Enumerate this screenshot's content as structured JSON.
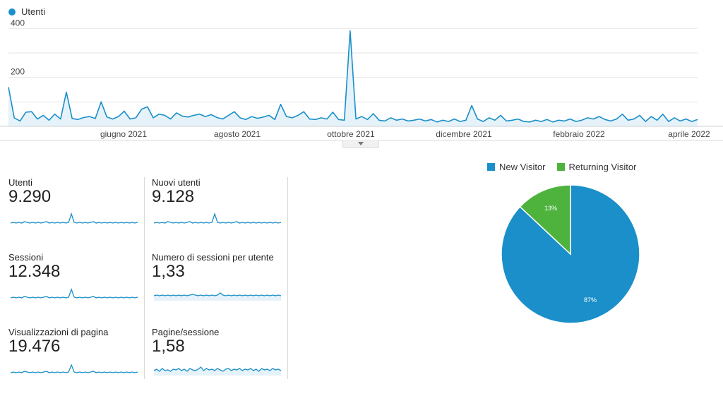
{
  "colors": {
    "accent": "#1a8fc9",
    "new_visitor": "#1a8fc9",
    "returning_visitor": "#4eb33d",
    "grid": "#e6e6e6",
    "area_fill": "#e6f2f9"
  },
  "legend": {
    "series_name": "Utenti"
  },
  "chart_data": [
    {
      "type": "line",
      "series": [
        {
          "name": "Utenti",
          "values": [
            160,
            35,
            22,
            58,
            60,
            30,
            45,
            25,
            50,
            30,
            140,
            32,
            28,
            36,
            40,
            32,
            100,
            38,
            30,
            40,
            62,
            30,
            35,
            70,
            80,
            35,
            50,
            45,
            30,
            55,
            42,
            38,
            45,
            50,
            40,
            48,
            36,
            30,
            45,
            60,
            35,
            28,
            40,
            33,
            38,
            45,
            28,
            90,
            40,
            35,
            45,
            60,
            30,
            28,
            35,
            30,
            58,
            28,
            25,
            390,
            30,
            40,
            28,
            52,
            25,
            22,
            35,
            25,
            30,
            22,
            25,
            30,
            22,
            28,
            18,
            25,
            20,
            30,
            20,
            25,
            85,
            30,
            20,
            35,
            25,
            45,
            22,
            25,
            30,
            20,
            18,
            25,
            20,
            28,
            18,
            25,
            22,
            30,
            20,
            25,
            35,
            30,
            40,
            28,
            22,
            30,
            50,
            25,
            30,
            45,
            20,
            40,
            25,
            50,
            20,
            35,
            22,
            30,
            20,
            28
          ]
        }
      ],
      "x_tick_labels": [
        "giugno 2021",
        "agosto 2021",
        "ottobre 2021",
        "dicembre 2021",
        "febbraio 2022",
        "aprile 2022"
      ],
      "y_tick_labels": [
        "200",
        "400"
      ],
      "ylim": [
        0,
        400
      ],
      "grid": true
    },
    {
      "type": "pie",
      "labels": [
        "New Visitor",
        "Returning Visitor"
      ],
      "values": [
        87,
        13
      ],
      "data_labels": [
        "87%",
        "13%"
      ],
      "legend_position": "top"
    }
  ],
  "metrics": [
    {
      "label": "Utenti",
      "value": "9.290",
      "spark": [
        3,
        4,
        3,
        4,
        3,
        5,
        4,
        3,
        4,
        3,
        4,
        3,
        4,
        5,
        3,
        4,
        3,
        4,
        3,
        4,
        3,
        4,
        16,
        4,
        3,
        4,
        3,
        4,
        3,
        4,
        5,
        3,
        4,
        3,
        4,
        3,
        4,
        3,
        4,
        3,
        4,
        3,
        4,
        3,
        4,
        3,
        4
      ],
      "fill": false
    },
    {
      "label": "Nuovi utenti",
      "value": "9.128",
      "spark": [
        3,
        4,
        3,
        4,
        3,
        5,
        4,
        3,
        4,
        3,
        4,
        3,
        4,
        5,
        3,
        4,
        3,
        4,
        3,
        4,
        3,
        4,
        16,
        4,
        3,
        4,
        3,
        4,
        3,
        4,
        5,
        3,
        4,
        3,
        4,
        3,
        4,
        3,
        4,
        3,
        4,
        3,
        4,
        3,
        4,
        3,
        4
      ],
      "fill": false
    },
    {
      "label": "Sessioni",
      "value": "12.348",
      "spark": [
        3,
        4,
        3,
        4,
        3,
        5,
        4,
        3,
        4,
        3,
        4,
        3,
        4,
        5,
        3,
        4,
        3,
        4,
        3,
        4,
        3,
        4,
        15,
        4,
        3,
        4,
        3,
        4,
        3,
        4,
        5,
        3,
        4,
        3,
        4,
        3,
        4,
        3,
        4,
        3,
        4,
        3,
        4,
        3,
        4,
        3,
        4
      ],
      "fill": false
    },
    {
      "label": "Numero di sessioni per utente",
      "value": "1,33",
      "spark": [
        6,
        7,
        6,
        7,
        6,
        7,
        6,
        7,
        6,
        7,
        6,
        7,
        6,
        7,
        8,
        7,
        6,
        7,
        6,
        7,
        6,
        7,
        6,
        7,
        10,
        7,
        6,
        7,
        6,
        7,
        6,
        7,
        6,
        7,
        6,
        7,
        6,
        7,
        6,
        7,
        6,
        7,
        6,
        7,
        6,
        7,
        6
      ],
      "fill": true
    },
    {
      "label": "Visualizzazioni di pagina",
      "value": "19.476",
      "spark": [
        3,
        4,
        3,
        4,
        3,
        5,
        4,
        3,
        4,
        3,
        4,
        3,
        4,
        5,
        3,
        4,
        3,
        4,
        3,
        4,
        3,
        4,
        14,
        4,
        3,
        4,
        3,
        4,
        3,
        4,
        5,
        3,
        4,
        3,
        4,
        3,
        4,
        3,
        4,
        3,
        4,
        3,
        4,
        3,
        4,
        3,
        4
      ],
      "fill": false
    },
    {
      "label": "Pagine/sessione",
      "value": "1,58",
      "spark": [
        6,
        8,
        5,
        9,
        6,
        7,
        5,
        8,
        7,
        9,
        6,
        8,
        5,
        9,
        7,
        6,
        8,
        11,
        6,
        9,
        7,
        8,
        6,
        9,
        7,
        5,
        8,
        9,
        6,
        8,
        7,
        9,
        6,
        8,
        7,
        9,
        6,
        8,
        5,
        9,
        7,
        8,
        6,
        9,
        7,
        8,
        6
      ],
      "fill": true
    }
  ]
}
